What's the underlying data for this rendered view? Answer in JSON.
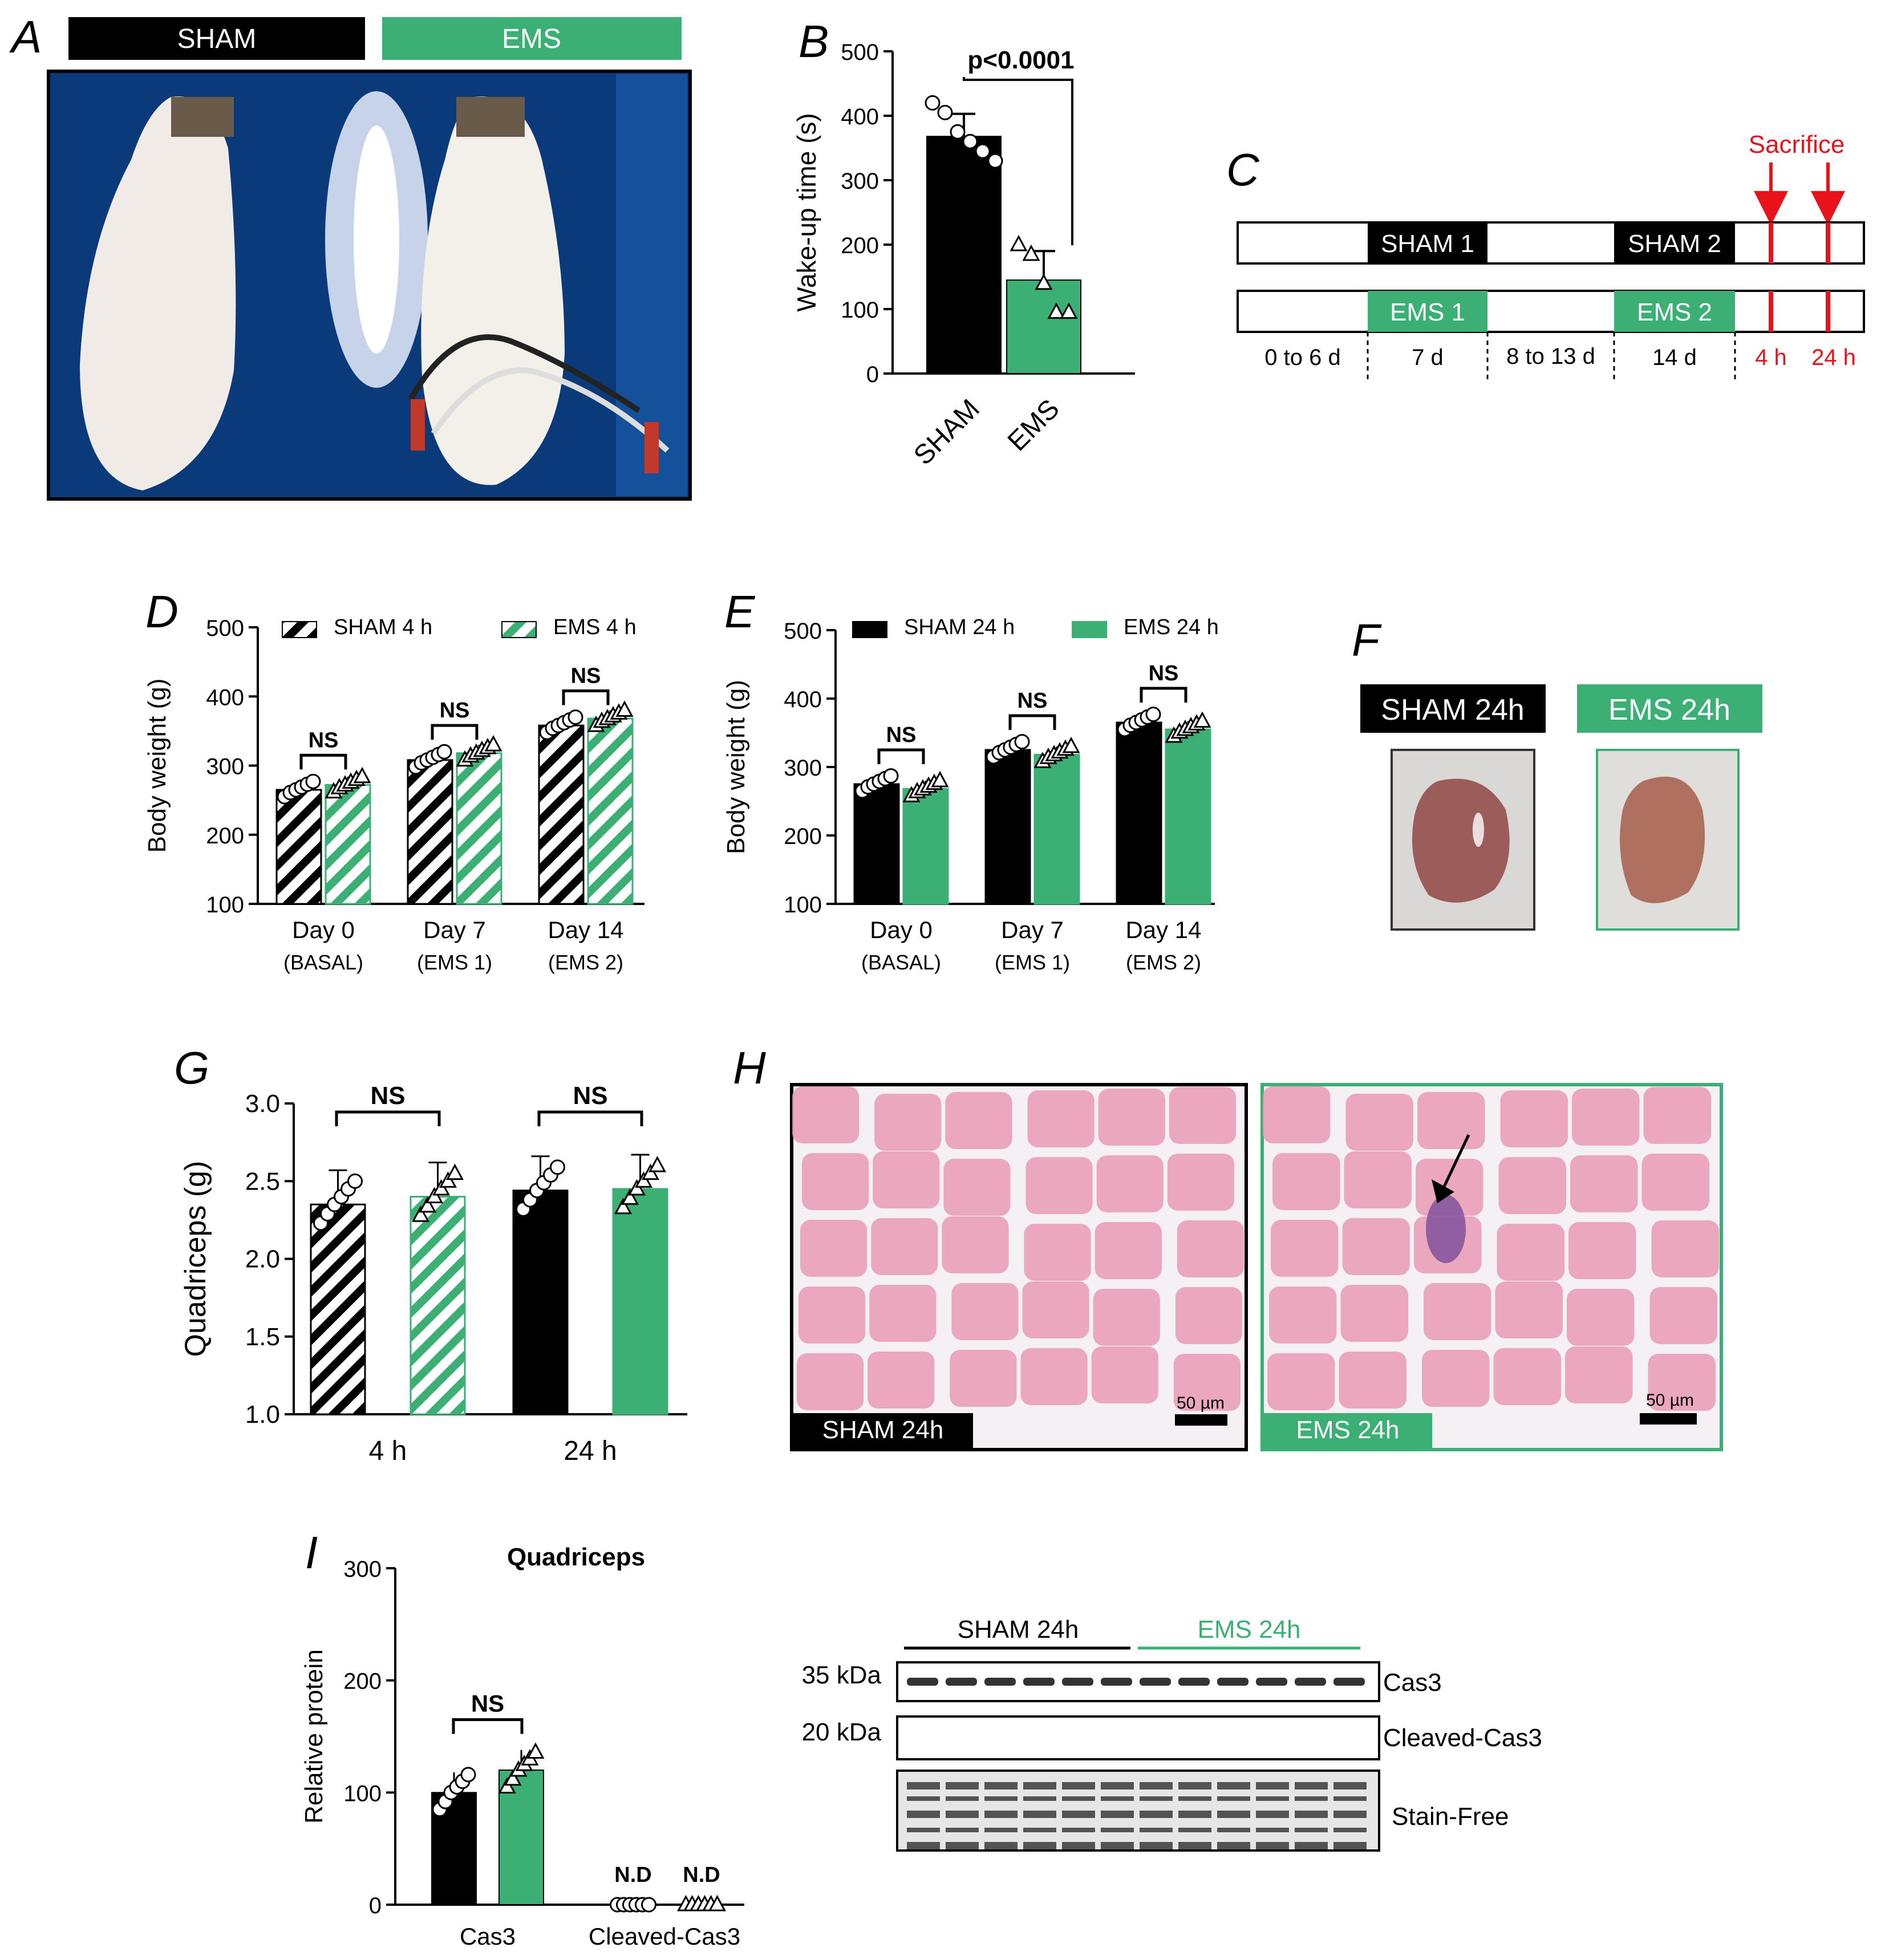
{
  "colors": {
    "black": "#000000",
    "green": "#3BAF74",
    "red": "#E8121B",
    "blue": "#0b3a7a",
    "histo": "#e79ab3",
    "gap": "#f5f0f3"
  },
  "panels": {
    "a": {
      "letter": "A",
      "sham": "SHAM",
      "ems": "EMS"
    },
    "b": {
      "letter": "B",
      "p_value": "p<0.0001"
    },
    "c": {
      "letter": "C",
      "sacrifice": "Sacrifice",
      "row1": [
        "SHAM 1",
        "SHAM 2"
      ],
      "row2": [
        "EMS 1",
        "EMS 2"
      ],
      "periods": [
        "0 to 6 d",
        "7 d",
        "8 to 13 d",
        "14 d",
        "4 h",
        "24 h"
      ]
    },
    "d": {
      "letter": "D"
    },
    "e": {
      "letter": "E"
    },
    "f": {
      "letter": "F",
      "sham": "SHAM 24h",
      "ems": "EMS 24h"
    },
    "g": {
      "letter": "G"
    },
    "h": {
      "letter": "H",
      "sham": "SHAM 24h",
      "ems": "EMS 24h",
      "scale": "50 µm"
    },
    "i": {
      "letter": "I",
      "blot": {
        "sham": "SHAM 24h",
        "ems": "EMS 24h",
        "mw": [
          "35 kDa",
          "20 kDa"
        ],
        "bands": [
          "Cas3",
          "Cleaved-Cas3",
          "Stain-Free"
        ]
      }
    }
  },
  "chart_data": [
    {
      "id": "B",
      "type": "bar",
      "categories": [
        "SHAM",
        "EMS"
      ],
      "values": [
        368,
        145
      ],
      "errors": [
        35,
        45
      ],
      "points": [
        [
          420,
          405,
          375,
          360,
          345,
          330
        ],
        [
          200,
          185,
          140,
          95,
          95
        ]
      ],
      "ylabel": "Wake-up time (s)",
      "ylim": [
        0,
        500
      ],
      "yticks": [
        0,
        100,
        200,
        300,
        400,
        500
      ],
      "annotation": "p<0.0001"
    },
    {
      "id": "D",
      "type": "bar",
      "categories": [
        "Day 0",
        "Day 7",
        "Day 14"
      ],
      "sublabels": [
        "(BASAL)",
        "(EMS 1)",
        "(EMS 2)"
      ],
      "series": [
        {
          "name": "SHAM 4 h",
          "values": [
            265,
            308,
            358
          ],
          "hatched": true
        },
        {
          "name": "EMS 4 h",
          "values": [
            272,
            318,
            368
          ],
          "hatched": true
        }
      ],
      "ylabel": "Body weight (g)",
      "ylim": [
        100,
        500
      ],
      "yticks": [
        100,
        200,
        300,
        400,
        500
      ],
      "annotations": [
        "NS",
        "NS",
        "NS"
      ]
    },
    {
      "id": "E",
      "type": "bar",
      "categories": [
        "Day 0",
        "Day 7",
        "Day 14"
      ],
      "sublabels": [
        "(BASAL)",
        "(EMS 1)",
        "(EMS 2)"
      ],
      "series": [
        {
          "name": "SHAM 24 h",
          "values": [
            275,
            325,
            365
          ]
        },
        {
          "name": "EMS 24 h",
          "values": [
            268,
            318,
            355
          ]
        }
      ],
      "ylabel": "Body weight (g)",
      "ylim": [
        100,
        500
      ],
      "yticks": [
        100,
        200,
        300,
        400,
        500
      ],
      "annotations": [
        "NS",
        "NS",
        "NS"
      ]
    },
    {
      "id": "G",
      "type": "bar",
      "categories": [
        "4 h",
        "24 h"
      ],
      "series": [
        {
          "name": "SHAM",
          "values": [
            2.35,
            2.44
          ]
        },
        {
          "name": "EMS",
          "values": [
            2.4,
            2.45
          ]
        }
      ],
      "hatched_groups": [
        true,
        false
      ],
      "ylabel": "Quadriceps (g)",
      "ylim": [
        1.0,
        3.0
      ],
      "yticks": [
        "1.0",
        "1.5",
        "2.0",
        "2.5",
        "3.0"
      ],
      "annotations": [
        "NS",
        "NS"
      ]
    },
    {
      "id": "I",
      "type": "bar",
      "title": "Quadriceps",
      "categories": [
        "Cas3",
        "Cleaved-Cas3"
      ],
      "series": [
        {
          "name": "SHAM 24h",
          "values": [
            100,
            0
          ]
        },
        {
          "name": "EMS 24h",
          "values": [
            120,
            0
          ]
        }
      ],
      "ylabel": "Relative protein",
      "ylim": [
        0,
        300
      ],
      "yticks": [
        0,
        100,
        200,
        300
      ],
      "annotations": [
        "NS",
        "N.D",
        "N.D"
      ]
    }
  ]
}
